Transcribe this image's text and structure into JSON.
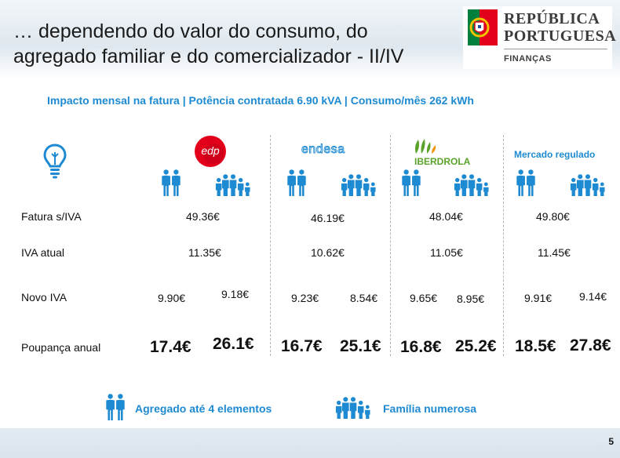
{
  "header": {
    "title_line1": "… dependendo do valor do consumo, do",
    "title_line2": "agregado familiar e do comercializador - II/IV",
    "logo": {
      "name_line1": "REPÚBLICA",
      "name_line2": "PORTUGUESA",
      "sub": "FINANÇAS"
    }
  },
  "subtitle": "Impacto mensal na fatura | Potência contratada 6.90 kVA | Consumo/mês 262 kWh",
  "icons": {
    "bulb": "lightbulb-icon",
    "small_family": "couple-icon",
    "large_family": "large-family-icon"
  },
  "providers": [
    {
      "name": "edp",
      "brand_color": "#e2001a"
    },
    {
      "name": "endesa",
      "brand_color": "#1d8ad1"
    },
    {
      "name": "IBERDROLA",
      "brand_color": "#5aa229"
    },
    {
      "name": "Mercado regulado",
      "brand_color": "#1d8ad1"
    }
  ],
  "rows": {
    "fatura": {
      "label": "Fatura s/IVA",
      "values": [
        "49.36€",
        "46.19€",
        "48.04€",
        "49.80€"
      ]
    },
    "iva": {
      "label": "IVA atual",
      "values": [
        "11.35€",
        "10.62€",
        "11.05€",
        "11.45€"
      ]
    },
    "novo_iva": {
      "label": "Novo IVA",
      "values": [
        "9.90€",
        "9.18€",
        "9.23€",
        "8.54€",
        "9.65€",
        "8.95€",
        "9.91€",
        "9.14€"
      ]
    },
    "poupanca": {
      "label": "Poupança anual",
      "values": [
        "17.4€",
        "26.1€",
        "16.7€",
        "25.1€",
        "16.8€",
        "25.2€",
        "18.5€",
        "27.8€"
      ]
    }
  },
  "legend": {
    "small": "Agregado até 4 elementos",
    "large": "Família numerosa"
  },
  "page_number": "5",
  "colors": {
    "accent": "#1d8ad1",
    "edp_red": "#e2001a",
    "iberdrola_green": "#5aa229",
    "iberdrola_orange": "#f39200"
  }
}
